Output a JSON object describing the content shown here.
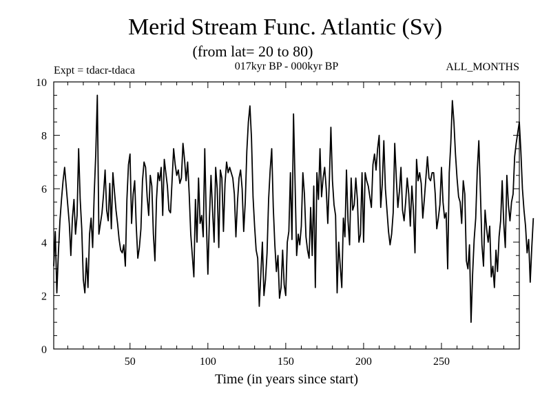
{
  "chart_data": {
    "type": "line",
    "title": "Merid Stream Func. Atlantic (Sv)",
    "subtitle": "(from lat= 20 to 80)",
    "experiment_label": "Expt = tdacr-tdaca",
    "period_label": "017kyr BP - 000kyr BP",
    "season_label": "ALL_MONTHS",
    "xlabel": "Time (in years since start)",
    "ylabel": "",
    "xlim": [
      1,
      300
    ],
    "ylim": [
      0,
      10
    ],
    "xticks": [
      50,
      100,
      150,
      200,
      250
    ],
    "yticks": [
      0,
      2,
      4,
      6,
      8,
      10
    ],
    "grid": false,
    "series": [
      {
        "name": "Merid Stream Func. Atlantic",
        "x_start": 1,
        "x_step": 1,
        "values": [
          3.1,
          4.4,
          2.1,
          3.6,
          4.8,
          5.6,
          6.3,
          6.8,
          6.1,
          5.4,
          4.7,
          3.5,
          4.9,
          5.6,
          4.3,
          5.0,
          7.5,
          5.6,
          4.5,
          2.6,
          2.1,
          3.4,
          2.3,
          4.3,
          4.9,
          3.8,
          5.8,
          7.3,
          9.5,
          4.3,
          4.7,
          5.1,
          5.8,
          6.7,
          5.2,
          4.8,
          6.2,
          4.5,
          6.6,
          5.9,
          5.2,
          4.7,
          4.1,
          3.7,
          3.6,
          3.9,
          3.1,
          5.6,
          6.9,
          7.3,
          4.7,
          5.8,
          6.3,
          4.6,
          3.4,
          3.8,
          4.5,
          6.3,
          7.0,
          6.8,
          5.7,
          5.0,
          6.5,
          6.1,
          4.3,
          3.3,
          5.6,
          6.6,
          6.3,
          6.8,
          5.0,
          7.1,
          6.6,
          6.1,
          5.2,
          5.1,
          6.3,
          7.5,
          6.9,
          6.5,
          6.7,
          6.2,
          6.4,
          7.7,
          7.1,
          6.3,
          7.0,
          5.8,
          4.3,
          3.5,
          2.7,
          5.6,
          4.0,
          6.4,
          4.7,
          5.0,
          4.2,
          7.5,
          4.8,
          2.8,
          4.9,
          6.5,
          5.2,
          4.0,
          6.8,
          6.0,
          3.8,
          6.7,
          6.4,
          4.4,
          6.2,
          7.0,
          6.6,
          6.8,
          6.6,
          6.4,
          5.8,
          4.2,
          5.5,
          6.4,
          6.7,
          6.0,
          4.4,
          5.5,
          7.4,
          8.5,
          9.1,
          7.9,
          5.7,
          4.6,
          3.7,
          3.4,
          1.6,
          2.8,
          4.0,
          2.0,
          2.6,
          3.6,
          5.6,
          6.7,
          7.5,
          5.3,
          3.9,
          2.9,
          3.5,
          1.9,
          2.3,
          3.7,
          2.4,
          2.0,
          4.0,
          4.4,
          6.6,
          4.1,
          8.8,
          6.2,
          3.5,
          4.3,
          3.9,
          4.6,
          6.6,
          5.8,
          4.2,
          3.7,
          3.4,
          5.3,
          3.5,
          6.1,
          2.3,
          6.6,
          5.6,
          7.5,
          5.7,
          6.4,
          6.8,
          6.0,
          4.7,
          6.3,
          8.3,
          6.3,
          5.4,
          5.0,
          2.1,
          4.0,
          3.1,
          2.3,
          4.9,
          4.2,
          6.7,
          4.8,
          3.9,
          6.4,
          5.2,
          5.4,
          6.4,
          5.6,
          4.0,
          4.3,
          6.6,
          4.0,
          6.6,
          6.3,
          6.1,
          5.7,
          5.3,
          6.9,
          7.3,
          6.7,
          7.5,
          8.0,
          5.3,
          6.2,
          7.8,
          6.0,
          5.2,
          4.4,
          3.9,
          4.3,
          5.1,
          7.7,
          6.4,
          5.3,
          5.9,
          6.8,
          5.2,
          4.8,
          5.5,
          6.4,
          5.8,
          4.6,
          6.1,
          5.2,
          3.6,
          7.1,
          6.3,
          6.6,
          6.2,
          4.9,
          5.6,
          6.4,
          7.2,
          6.4,
          6.3,
          6.6,
          6.6,
          5.8,
          4.5,
          4.9,
          5.4,
          6.8,
          5.5,
          4.9,
          5.1,
          3.0,
          6.6,
          7.7,
          9.3,
          8.5,
          7.3,
          6.4,
          5.7,
          5.5,
          4.7,
          6.3,
          5.8,
          3.3,
          3.0,
          3.9,
          1.0,
          2.8,
          4.1,
          4.9,
          6.7,
          7.8,
          5.9,
          3.9,
          3.1,
          5.2,
          4.5,
          4.0,
          4.6,
          2.7,
          3.1,
          2.3,
          3.7,
          2.9,
          4.2,
          4.8,
          6.3,
          4.7,
          3.8,
          6.5,
          5.4,
          4.8,
          5.5,
          5.8,
          7.2,
          7.7,
          8.1,
          8.5,
          7.4,
          6.0,
          5.2,
          4.6,
          3.6,
          4.1,
          2.5,
          3.8,
          4.9
        ]
      }
    ]
  }
}
